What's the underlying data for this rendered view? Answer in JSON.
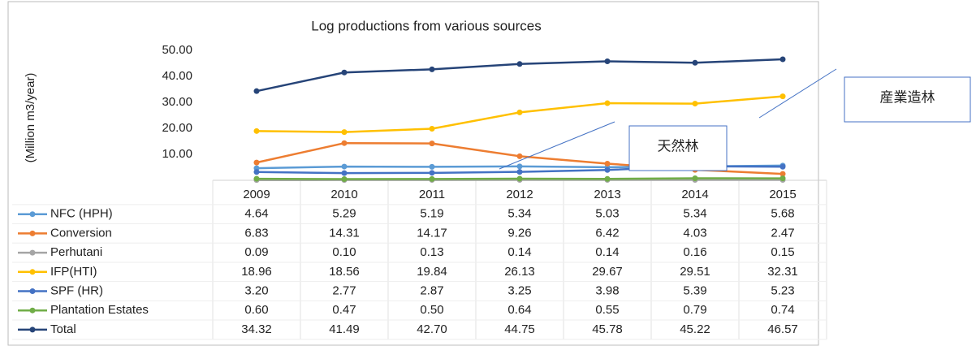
{
  "chart_data": {
    "type": "line",
    "title": "Log productions from various sources",
    "y_label": "(Million m3/year)",
    "categories": [
      "2009",
      "2010",
      "2011",
      "2012",
      "2013",
      "2014",
      "2015"
    ],
    "ylim": [
      0,
      50
    ],
    "yticks": [
      {
        "value": 10,
        "label": "10.00"
      },
      {
        "value": 20,
        "label": "20.00"
      },
      {
        "value": 30,
        "label": "30.00"
      },
      {
        "value": 40,
        "label": "40.00"
      },
      {
        "value": 50,
        "label": "50.00"
      }
    ],
    "series": [
      {
        "name": "NFC (HPH)",
        "color": "#5b9bd5",
        "values": [
          4.64,
          5.29,
          5.19,
          5.34,
          5.03,
          5.34,
          5.68
        ],
        "value_labels": [
          "4.64",
          "5.29",
          "5.19",
          "5.34",
          "5.03",
          "5.34",
          "5.68"
        ]
      },
      {
        "name": "Conversion",
        "color": "#ed7d31",
        "values": [
          6.83,
          14.31,
          14.17,
          9.26,
          6.42,
          4.03,
          2.47
        ],
        "value_labels": [
          "6.83",
          "14.31",
          "14.17",
          "9.26",
          "6.42",
          "4.03",
          "2.47"
        ]
      },
      {
        "name": "Perhutani",
        "color": "#a5a5a5",
        "values": [
          0.09,
          0.1,
          0.13,
          0.14,
          0.14,
          0.16,
          0.15
        ],
        "value_labels": [
          "0.09",
          "0.10",
          "0.13",
          "0.14",
          "0.14",
          "0.16",
          "0.15"
        ]
      },
      {
        "name": "IFP(HTI)",
        "color": "#ffc000",
        "values": [
          18.96,
          18.56,
          19.84,
          26.13,
          29.67,
          29.51,
          32.31
        ],
        "value_labels": [
          "18.96",
          "18.56",
          "19.84",
          "26.13",
          "29.67",
          "29.51",
          "32.31"
        ]
      },
      {
        "name": "SPF (HR)",
        "color": "#4472c4",
        "values": [
          3.2,
          2.77,
          2.87,
          3.25,
          3.98,
          5.39,
          5.23
        ],
        "value_labels": [
          "3.20",
          "2.77",
          "2.87",
          "3.25",
          "3.98",
          "5.39",
          "5.23"
        ]
      },
      {
        "name": "Plantation Estates",
        "color": "#70ad47",
        "values": [
          0.6,
          0.47,
          0.5,
          0.64,
          0.55,
          0.79,
          0.74
        ],
        "value_labels": [
          "0.60",
          "0.47",
          "0.50",
          "0.64",
          "0.55",
          "0.79",
          "0.74"
        ]
      },
      {
        "name": "Total",
        "color": "#264478",
        "values": [
          34.32,
          41.49,
          42.7,
          44.75,
          45.78,
          45.22,
          46.57
        ],
        "value_labels": [
          "34.32",
          "41.49",
          "42.70",
          "44.75",
          "45.78",
          "45.22",
          "46.57"
        ]
      }
    ],
    "annotations": [
      {
        "text": "天然林"
      },
      {
        "text": "産業造林"
      }
    ]
  }
}
